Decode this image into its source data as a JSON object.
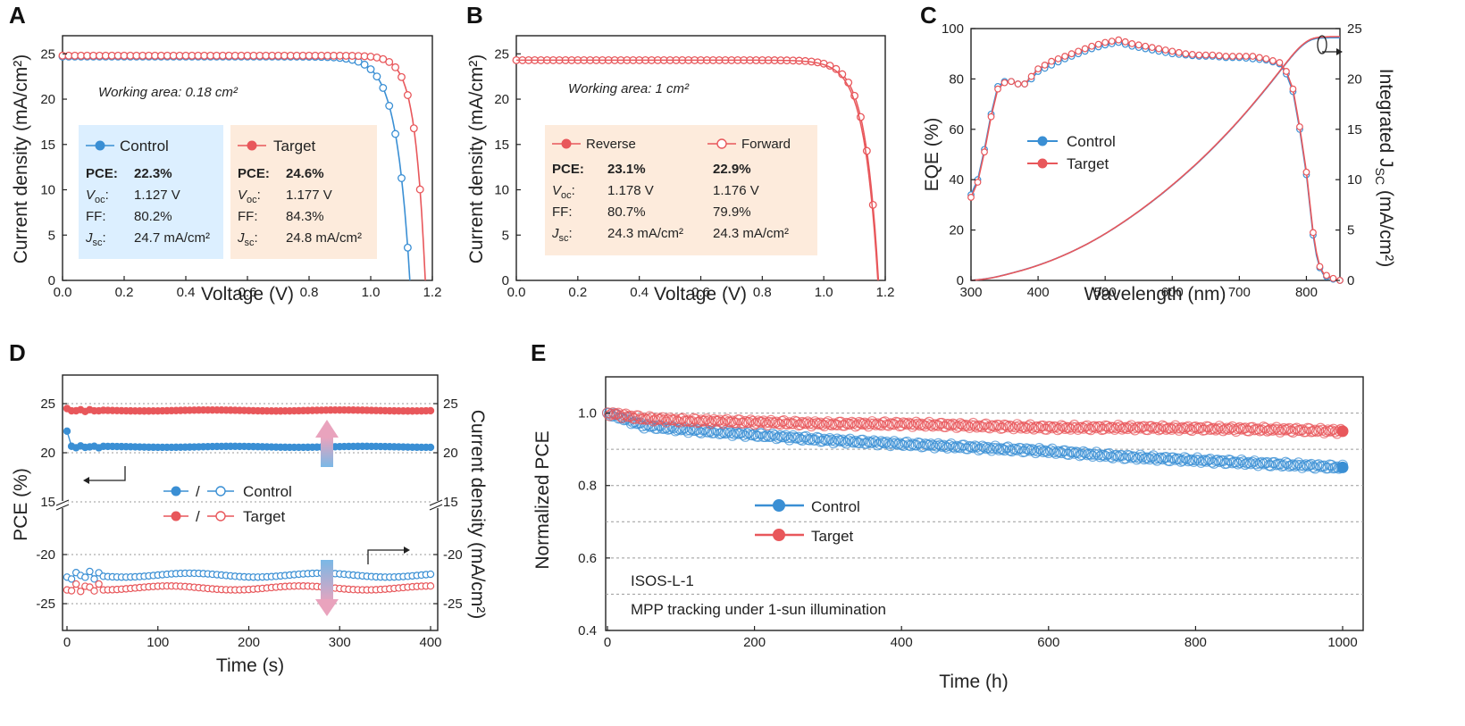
{
  "colors": {
    "control": "#3a8fd4",
    "target": "#e8575b",
    "control_box": "#dcefff",
    "target_box": "#fdebdc",
    "grid": "#9a9a9a"
  },
  "chart_data": [
    {
      "id": "A",
      "type": "line",
      "panel_label": "A",
      "xlabel": "Voltage (V)",
      "ylabel": "Current density (mA/cm²)",
      "xlim": [
        0,
        1.2
      ],
      "ylim": [
        0,
        27
      ],
      "xticks": [
        "0.0",
        "0.2",
        "0.4",
        "0.6",
        "0.8",
        "1.0",
        "1.2"
      ],
      "yticks": [
        "0",
        "5",
        "10",
        "15",
        "20",
        "25"
      ],
      "annotation": "Working area: 0.18 cm²",
      "series": [
        {
          "name": "Control",
          "jsc": 24.7,
          "voc": 1.127,
          "ff": 80.2,
          "pce": 22.3
        },
        {
          "name": "Target",
          "jsc": 24.8,
          "voc": 1.177,
          "ff": 84.3,
          "pce": 24.6
        }
      ],
      "legend_boxes": [
        {
          "name": "Control",
          "pce_label": "PCE:",
          "pce": "22.3%",
          "voc_label": "V",
          "voc_sub": "oc",
          "voc": "1.127 V",
          "ff_label": "FF:",
          "ff": "80.2%",
          "jsc_label": "J",
          "jsc_sub": "sc",
          "jsc": "24.7 mA/cm²"
        },
        {
          "name": "Target",
          "pce_label": "PCE:",
          "pce": "24.6%",
          "voc_label": "V",
          "voc_sub": "oc",
          "voc": "1.177 V",
          "ff_label": "FF:",
          "ff": "84.3%",
          "jsc_label": "J",
          "jsc_sub": "sc",
          "jsc": "24.8 mA/cm²"
        }
      ]
    },
    {
      "id": "B",
      "type": "line",
      "panel_label": "B",
      "xlabel": "Voltage (V)",
      "ylabel": "Current density (mA/cm²)",
      "xlim": [
        0,
        1.2
      ],
      "ylim": [
        0,
        27
      ],
      "xticks": [
        "0.0",
        "0.2",
        "0.4",
        "0.6",
        "0.8",
        "1.0",
        "1.2"
      ],
      "yticks": [
        "0",
        "5",
        "10",
        "15",
        "20",
        "25"
      ],
      "annotation": "Working area: 1 cm²",
      "series": [
        {
          "name": "Reverse",
          "jsc": 24.3,
          "voc": 1.178,
          "ff": 80.7,
          "pce": 23.1
        },
        {
          "name": "Forward",
          "jsc": 24.3,
          "voc": 1.176,
          "ff": 79.9,
          "pce": 22.9
        }
      ],
      "legend": {
        "names": [
          "Reverse",
          "Forward"
        ],
        "rows": [
          {
            "label": "PCE:",
            "values": [
              "23.1%",
              "22.9%"
            ]
          },
          {
            "label": "V",
            "sub": "oc",
            "values": [
              "1.178 V",
              "1.176 V"
            ]
          },
          {
            "label": "FF:",
            "values": [
              "80.7%",
              "79.9%"
            ]
          },
          {
            "label": "J",
            "sub": "sc",
            "values": [
              "24.3 mA/cm²",
              "24.3 mA/cm²"
            ]
          }
        ]
      }
    },
    {
      "id": "C",
      "type": "line",
      "panel_label": "C",
      "xlabel": "Wavelength (nm)",
      "ylabel": "EQE (%)",
      "y2label": "Integrated J",
      "y2label_sub": "SC",
      "y2label_unit": " (mA/cm²)",
      "xlim": [
        300,
        850
      ],
      "ylim": [
        0,
        100
      ],
      "y2lim": [
        0,
        25
      ],
      "xticks": [
        "300",
        "400",
        "500",
        "600",
        "700",
        "800"
      ],
      "yticks": [
        "0",
        "20",
        "40",
        "60",
        "80",
        "100"
      ],
      "y2ticks": [
        "0",
        "5",
        "10",
        "15",
        "20",
        "25"
      ],
      "series": [
        {
          "name": "Control",
          "x": [
            300,
            310,
            320,
            330,
            340,
            350,
            360,
            370,
            380,
            390,
            400,
            420,
            440,
            460,
            480,
            500,
            520,
            540,
            560,
            580,
            600,
            620,
            640,
            660,
            680,
            700,
            720,
            740,
            760,
            770,
            780,
            790,
            800,
            805,
            810,
            815,
            820,
            825,
            830,
            840,
            850
          ],
          "eqe": [
            34,
            40,
            52,
            66,
            77,
            79,
            79,
            78,
            78,
            80,
            83,
            85.5,
            88,
            90,
            92,
            93.5,
            94.5,
            93,
            92,
            91,
            90,
            89.5,
            89,
            89,
            88.5,
            88.5,
            88,
            87.5,
            86,
            82,
            75,
            60,
            42,
            30,
            18,
            10,
            5,
            2.5,
            1.5,
            0.5,
            0
          ]
        },
        {
          "name": "Target",
          "x": [
            300,
            310,
            320,
            330,
            340,
            350,
            360,
            370,
            380,
            390,
            400,
            420,
            440,
            460,
            480,
            500,
            520,
            540,
            560,
            580,
            600,
            620,
            640,
            660,
            680,
            700,
            720,
            740,
            760,
            770,
            780,
            790,
            800,
            805,
            810,
            815,
            820,
            825,
            830,
            840,
            850
          ],
          "eqe": [
            33,
            39,
            51,
            65,
            76,
            78.5,
            79,
            78,
            78,
            81,
            84,
            87,
            89,
            91,
            93,
            94.5,
            95.5,
            94,
            93,
            92,
            91,
            90,
            89.5,
            89.5,
            89,
            89,
            89,
            88,
            86.5,
            83,
            76,
            61,
            43,
            31,
            19,
            11,
            5.5,
            3,
            2,
            0.8,
            0
          ]
        }
      ],
      "integrated_jsc": {
        "Control": 24.1,
        "Target": 24.2
      },
      "legend": [
        "Control",
        "Target"
      ]
    },
    {
      "id": "D",
      "type": "line",
      "panel_label": "D",
      "xlabel": "Time (s)",
      "ylabel": "PCE (%)",
      "y2label": "Current density (mA/cm²)",
      "xlim": [
        0,
        400
      ],
      "xticks": [
        "0",
        "100",
        "200",
        "300",
        "400"
      ],
      "yticks_upper": [
        "15",
        "20",
        "25"
      ],
      "yticks_lower": [
        "-20",
        "-25"
      ],
      "series": [
        {
          "name": "Control PCE",
          "start": 22.2,
          "steady": 20.6
        },
        {
          "name": "Target PCE",
          "start": 24.5,
          "steady": 24.3
        },
        {
          "name": "Control current",
          "start": -22.3,
          "steady": -22.1
        },
        {
          "name": "Target current",
          "start": -23.6,
          "steady": -23.4
        }
      ],
      "legend": [
        "Control",
        "Target"
      ],
      "legend_sep": "/"
    },
    {
      "id": "E",
      "type": "scatter",
      "panel_label": "E",
      "xlabel": "Time (h)",
      "ylabel": "Normalized PCE",
      "xlim": [
        0,
        1000
      ],
      "ylim": [
        0.4,
        1.1
      ],
      "xticks": [
        "0",
        "200",
        "400",
        "600",
        "800",
        "1000"
      ],
      "yticks": [
        "0.4",
        "0.6",
        "0.8",
        "1.0"
      ],
      "series": [
        {
          "name": "Control",
          "x": [
            0,
            50,
            100,
            200,
            300,
            400,
            500,
            600,
            700,
            800,
            900,
            1000
          ],
          "y": [
            1.0,
            0.965,
            0.955,
            0.94,
            0.925,
            0.915,
            0.905,
            0.895,
            0.88,
            0.87,
            0.86,
            0.85
          ]
        },
        {
          "name": "Target",
          "x": [
            0,
            50,
            100,
            200,
            300,
            400,
            500,
            600,
            700,
            800,
            900,
            1000
          ],
          "y": [
            1.0,
            0.985,
            0.98,
            0.975,
            0.97,
            0.97,
            0.965,
            0.96,
            0.96,
            0.958,
            0.955,
            0.95
          ]
        }
      ],
      "annotations": [
        "ISOS-L-1",
        "MPP tracking under 1-sun illumination"
      ],
      "legend": [
        "Control",
        "Target"
      ]
    }
  ]
}
